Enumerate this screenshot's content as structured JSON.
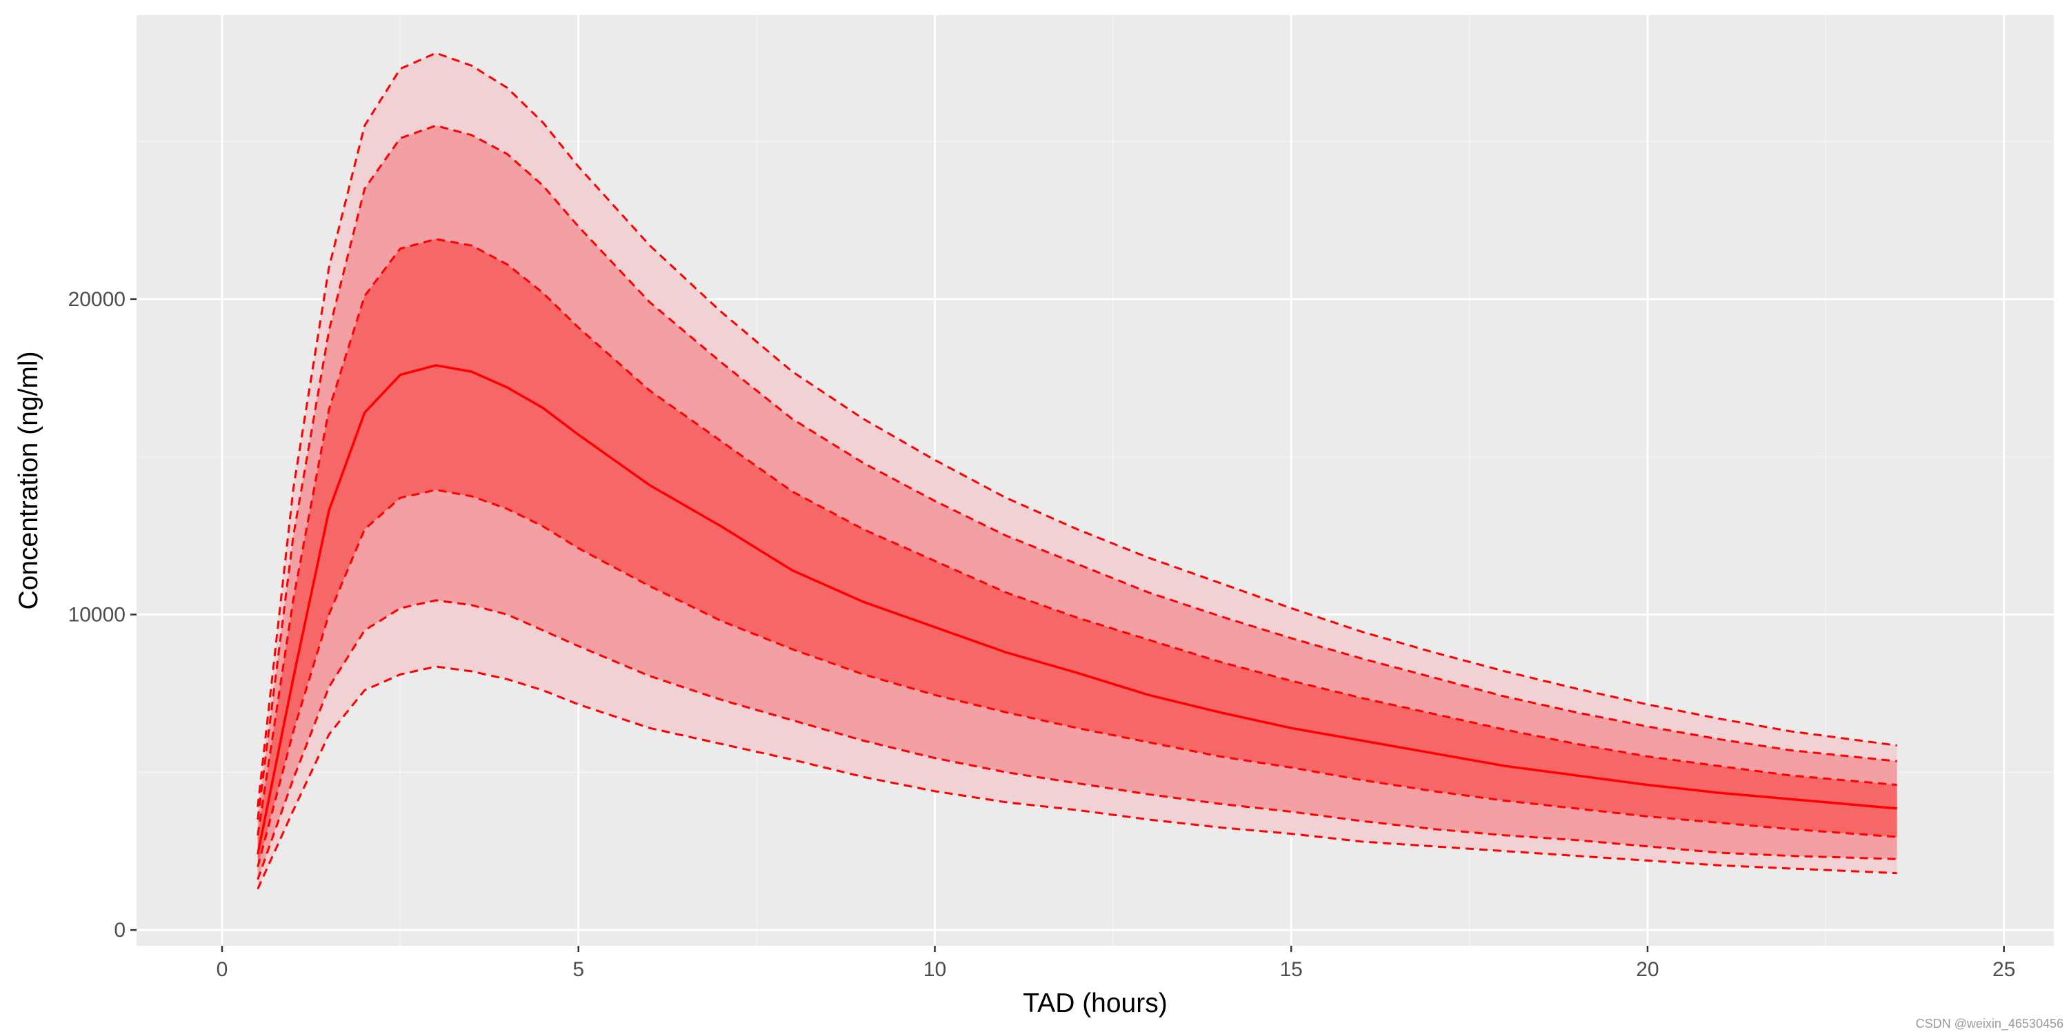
{
  "chart_data": {
    "type": "area",
    "title": "",
    "xlabel": "TAD (hours)",
    "ylabel": "Concentration (ng/ml)",
    "xlim": [
      -1.2,
      25.7
    ],
    "ylim": [
      -500,
      29000
    ],
    "x_ticks": [
      0,
      5,
      10,
      15,
      20,
      25
    ],
    "y_ticks": [
      0,
      10000,
      20000
    ],
    "grid": true,
    "legend": "none",
    "colors": {
      "panel_background": "#ebebeb",
      "grid_major": "#ffffff",
      "grid_minor": "#f4f4f4",
      "line": "#ff0000",
      "band_outer": "#f0d1d4",
      "band_middle": "#f2a0a3",
      "band_inner": "#f66868"
    },
    "x": [
      0.5,
      1,
      1.5,
      2,
      2.5,
      3,
      3.5,
      4,
      4.5,
      5,
      6,
      7,
      8,
      9,
      10,
      11,
      12,
      13,
      14,
      15,
      16,
      17,
      18,
      19,
      20,
      21,
      22,
      23.5
    ],
    "series": [
      {
        "name": "p05",
        "style": "dashed",
        "values": [
          1300,
          3800,
          6200,
          7600,
          8100,
          8350,
          8200,
          7950,
          7600,
          7150,
          6400,
          5900,
          5400,
          4850,
          4400,
          4050,
          3800,
          3500,
          3250,
          3050,
          2800,
          2650,
          2500,
          2350,
          2200,
          2050,
          1950,
          1800
        ]
      },
      {
        "name": "p10",
        "style": "dashed",
        "values": [
          1600,
          4800,
          7700,
          9500,
          10200,
          10450,
          10300,
          10000,
          9500,
          9000,
          8050,
          7300,
          6650,
          6000,
          5450,
          5000,
          4650,
          4300,
          4000,
          3750,
          3450,
          3200,
          3000,
          2850,
          2650,
          2450,
          2350,
          2250
        ]
      },
      {
        "name": "p25",
        "style": "dashed",
        "values": [
          2000,
          6300,
          10000,
          12700,
          13700,
          13950,
          13750,
          13350,
          12800,
          12100,
          10900,
          9800,
          8900,
          8100,
          7450,
          6900,
          6400,
          5950,
          5500,
          5150,
          4750,
          4400,
          4100,
          3850,
          3600,
          3400,
          3200,
          2950
        ]
      },
      {
        "name": "median",
        "style": "solid",
        "values": [
          2400,
          8000,
          13300,
          16400,
          17600,
          17900,
          17700,
          17200,
          16550,
          15700,
          14100,
          12800,
          11400,
          10400,
          9600,
          8800,
          8150,
          7450,
          6900,
          6400,
          6000,
          5600,
          5200,
          4900,
          4600,
          4350,
          4150,
          3850
        ]
      },
      {
        "name": "p75",
        "style": "dashed",
        "values": [
          3000,
          10500,
          16500,
          20100,
          21600,
          21900,
          21700,
          21100,
          20200,
          19100,
          17100,
          15500,
          13900,
          12700,
          11700,
          10700,
          9900,
          9200,
          8500,
          7900,
          7350,
          6850,
          6350,
          5900,
          5500,
          5200,
          4900,
          4600
        ]
      },
      {
        "name": "p90",
        "style": "dashed",
        "values": [
          3500,
          12500,
          19000,
          23500,
          25100,
          25500,
          25200,
          24600,
          23600,
          22300,
          19900,
          18000,
          16200,
          14800,
          13600,
          12500,
          11600,
          10700,
          9950,
          9250,
          8600,
          8000,
          7400,
          6900,
          6450,
          6050,
          5700,
          5350
        ]
      },
      {
        "name": "p95",
        "style": "dashed",
        "values": [
          3900,
          14000,
          21000,
          25500,
          27300,
          27800,
          27400,
          26700,
          25600,
          24200,
          21700,
          19600,
          17700,
          16200,
          14900,
          13700,
          12700,
          11800,
          11000,
          10200,
          9450,
          8800,
          8200,
          7650,
          7150,
          6700,
          6300,
          5850
        ]
      }
    ]
  },
  "watermark": "CSDN @weixin_46530456"
}
